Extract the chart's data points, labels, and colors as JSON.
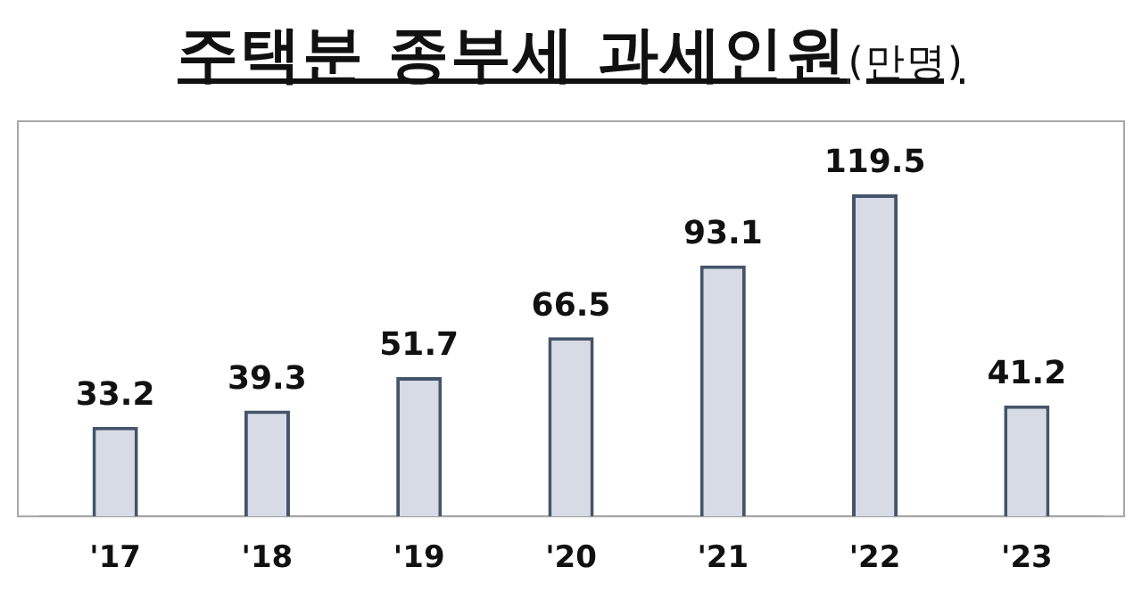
{
  "chart_data": {
    "type": "bar",
    "title": "주택분 종부세 과세인원(만명)",
    "categories": [
      "'17",
      "'18",
      "'19",
      "'20",
      "'21",
      "'22",
      "'23"
    ],
    "values": [
      33.2,
      39.3,
      51.7,
      66.5,
      93.1,
      119.5,
      41.2
    ],
    "color": "#d6dbe6",
    "data_labels": true,
    "grid": false,
    "legend": false
  }
}
